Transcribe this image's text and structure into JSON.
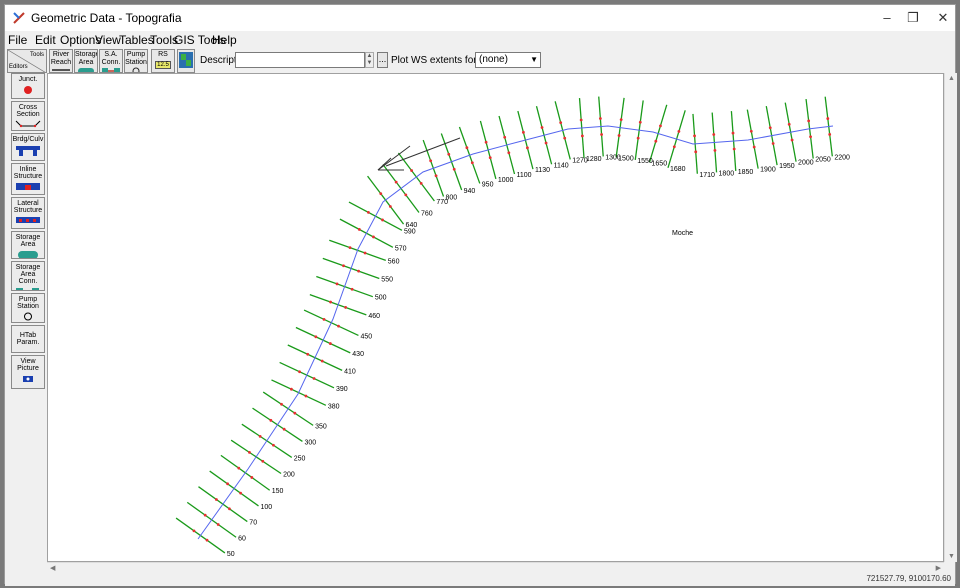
{
  "window": {
    "title": "Geometric Data - Topografia",
    "controls": {
      "minimize": "–",
      "restore": "❐",
      "close": "✕"
    }
  },
  "menu": [
    "File",
    "Edit",
    "Options",
    "View",
    "Tables",
    "Tools",
    "GIS Tools",
    "Help"
  ],
  "toolbar": {
    "tools_label": "Tools",
    "editors_label": "Editors",
    "buttons": [
      {
        "label": "River Reach",
        "icon": "river-reach-icon"
      },
      {
        "label": "Storage Area",
        "icon": "storage-area-icon"
      },
      {
        "label": "S.A. Conn.",
        "icon": "sa-connection-icon"
      },
      {
        "label": "Pump Station",
        "icon": "pump-station-icon"
      },
      {
        "label": "RS",
        "sub": "12.5",
        "icon": "river-station-icon"
      },
      {
        "label": "",
        "icon": "map-image-icon"
      }
    ],
    "description_label": "Description :",
    "description_value": "",
    "ellipsis": "...",
    "plot_ws_label": "Plot WS extents for Profile:",
    "profile_value": "(none)"
  },
  "editors": [
    {
      "label": "Junct.",
      "icon": "junction-icon"
    },
    {
      "label": "Cross Section",
      "icon": "cross-section-icon"
    },
    {
      "label": "Brdg/Culv",
      "icon": "bridge-culvert-icon"
    },
    {
      "label": "Inline Structure",
      "icon": "inline-structure-icon"
    },
    {
      "label": "Lateral Structure",
      "icon": "lateral-structure-icon"
    },
    {
      "label": "Storage Area",
      "icon": "storage-area-editor-icon"
    },
    {
      "label": "Storage Area Conn.",
      "icon": "storage-area-conn-icon"
    },
    {
      "label": "Pump Station",
      "icon": "pump-station-editor-icon"
    },
    {
      "label": "HTab Param.",
      "icon": "htab-icon"
    },
    {
      "label": "View Picture",
      "icon": "camera-icon"
    }
  ],
  "map": {
    "reach_label": "Moche",
    "colors": {
      "xs_line": "#1a9a1a",
      "centerline": "#5566ee",
      "bank_point": "#e83030"
    },
    "stations": [
      "50",
      "60",
      "70",
      "100",
      "150",
      "200",
      "250",
      "300",
      "350",
      "380",
      "390",
      "410",
      "430",
      "450",
      "460",
      "500",
      "550",
      "560",
      "570",
      "590",
      "640",
      "760",
      "770",
      "800",
      "940",
      "950",
      "1000",
      "1100",
      "1130",
      "1140",
      "1270",
      "1280",
      "1300",
      "1500",
      "1550",
      "1650",
      "1680",
      "1710",
      "1800",
      "1850",
      "1900",
      "1950",
      "2000",
      "2050",
      "2200"
    ]
  },
  "status": {
    "coordinates": "721527.79, 9100170.60"
  }
}
